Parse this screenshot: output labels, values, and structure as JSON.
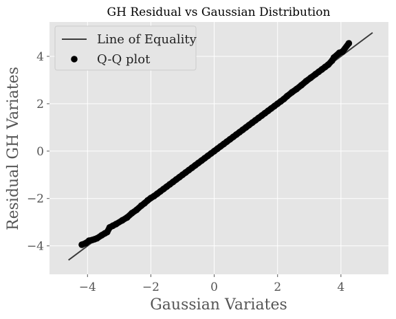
{
  "chart_data": {
    "type": "scatter",
    "title": "GH Residual vs Gaussian Distribution",
    "xlabel": "Gaussian Variates",
    "ylabel": "Residual GH Variates",
    "xlim": [
      -5.2,
      5.5
    ],
    "ylim": [
      -5.2,
      5.45
    ],
    "xticks": [
      -4,
      -2,
      0,
      2,
      4
    ],
    "yticks": [
      -4,
      -2,
      0,
      2,
      4
    ],
    "xtick_labels": [
      "−4",
      "−2",
      "0",
      "2",
      "4"
    ],
    "ytick_labels": [
      "−4",
      "−2",
      "0",
      "2",
      "4"
    ],
    "grid": true,
    "legend_position": "top-left",
    "colors": {
      "plot_background": "#e5e5e5",
      "grid": "#ffffff",
      "reference_line": "#3a3a3a",
      "points": "#000000",
      "tick_text": "#555555",
      "label_text": "#555555",
      "title_text": "#000000"
    },
    "series": [
      {
        "name": "Line of Equality",
        "kind": "line",
        "x": [
          -4.6,
          5.0
        ],
        "y": [
          -4.6,
          5.0
        ]
      },
      {
        "name": "Q-Q plot",
        "kind": "scatter",
        "x": [
          -4.18,
          -4.05,
          -3.95,
          -3.85,
          -3.78,
          -3.7,
          -3.55,
          -3.45,
          -3.38,
          -3.3,
          -3.2,
          -3.1,
          -2.9,
          -2.75,
          -2.6,
          -2.45,
          -2.3,
          -2.2,
          -2.1,
          -2.0,
          -1.9,
          -1.8,
          -1.7,
          -1.6,
          -1.5,
          -1.4,
          -1.3,
          -1.2,
          -1.1,
          -1.0,
          -0.9,
          -0.8,
          -0.7,
          -0.6,
          -0.5,
          -0.4,
          -0.3,
          -0.2,
          -0.1,
          0.0,
          0.1,
          0.2,
          0.3,
          0.4,
          0.5,
          0.6,
          0.7,
          0.8,
          0.9,
          1.0,
          1.1,
          1.2,
          1.3,
          1.4,
          1.5,
          1.6,
          1.7,
          1.8,
          1.9,
          2.0,
          2.1,
          2.2,
          2.3,
          2.45,
          2.6,
          2.75,
          2.9,
          3.05,
          3.2,
          3.3,
          3.4,
          3.5,
          3.6,
          3.72,
          3.78,
          3.95,
          4.05,
          4.25
        ],
        "y": [
          -3.95,
          -3.88,
          -3.78,
          -3.75,
          -3.72,
          -3.68,
          -3.55,
          -3.47,
          -3.42,
          -3.22,
          -3.15,
          -3.08,
          -2.92,
          -2.8,
          -2.62,
          -2.48,
          -2.3,
          -2.2,
          -2.08,
          -1.98,
          -1.9,
          -1.8,
          -1.7,
          -1.6,
          -1.5,
          -1.4,
          -1.3,
          -1.2,
          -1.1,
          -1.0,
          -0.9,
          -0.8,
          -0.7,
          -0.6,
          -0.5,
          -0.4,
          -0.3,
          -0.2,
          -0.1,
          0.0,
          0.1,
          0.2,
          0.3,
          0.4,
          0.5,
          0.6,
          0.7,
          0.8,
          0.9,
          1.0,
          1.1,
          1.2,
          1.3,
          1.4,
          1.5,
          1.6,
          1.7,
          1.8,
          1.9,
          2.0,
          2.1,
          2.2,
          2.32,
          2.48,
          2.62,
          2.78,
          2.95,
          3.1,
          3.25,
          3.35,
          3.45,
          3.55,
          3.65,
          3.82,
          3.95,
          4.15,
          4.2,
          4.55
        ]
      }
    ]
  }
}
